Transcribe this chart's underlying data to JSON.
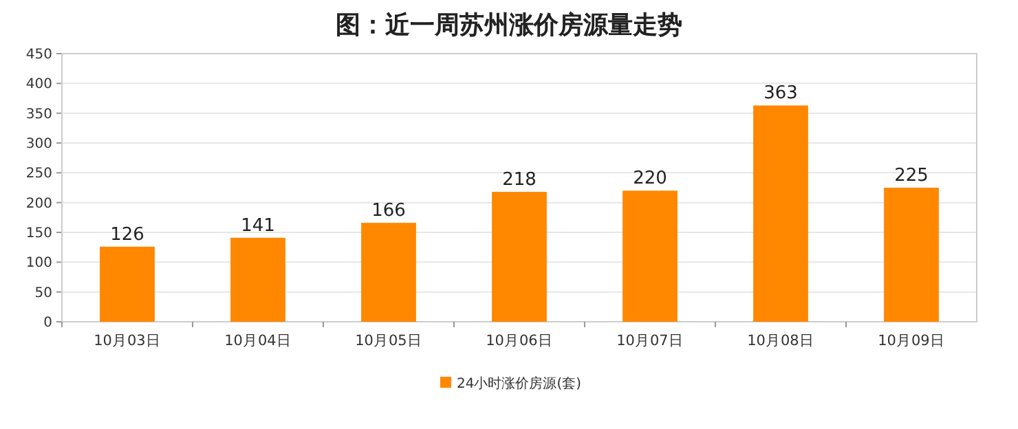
{
  "chart_data": {
    "type": "bar",
    "title": "图：近一周苏州涨价房源量走势",
    "categories": [
      "10月03日",
      "10月04日",
      "10月05日",
      "10月06日",
      "10月07日",
      "10月08日",
      "10月09日"
    ],
    "series": [
      {
        "name": "24小时涨价房源(套)",
        "color": "#ff8800",
        "values": [
          126,
          141,
          166,
          218,
          220,
          363,
          225
        ]
      }
    ],
    "ylim": [
      0,
      450
    ],
    "yticks": [
      0,
      50,
      100,
      150,
      200,
      250,
      300,
      350,
      400,
      450
    ],
    "grid": "y",
    "legend": "bottom",
    "data_labels": true
  }
}
